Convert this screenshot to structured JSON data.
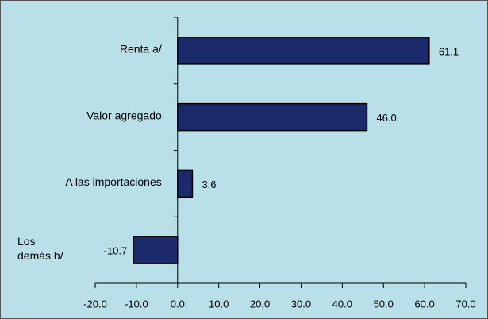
{
  "chart_data": {
    "type": "barh",
    "categories": [
      "Renta a/",
      "Valor agregado",
      "A las importaciones",
      "Los\ndemás b/"
    ],
    "values": [
      61.1,
      46.0,
      3.6,
      -10.7
    ],
    "value_labels": [
      "61.1",
      "46.0",
      "3.6",
      "-10.7"
    ],
    "color": "#1b2a6b",
    "xlim": [
      -20,
      70
    ],
    "xticks": [
      {
        "value": -20,
        "label": "-20.0"
      },
      {
        "value": -10,
        "label": "-10.0"
      },
      {
        "value": 0,
        "label": "0.0"
      },
      {
        "value": 10,
        "label": "10.0"
      },
      {
        "value": 20,
        "label": "20.0"
      },
      {
        "value": 30,
        "label": "30.0"
      },
      {
        "value": 40,
        "label": "40.0"
      },
      {
        "value": 50,
        "label": "50.0"
      },
      {
        "value": 60,
        "label": "60.0"
      },
      {
        "value": 70,
        "label": "70.0"
      }
    ],
    "grid": false
  }
}
